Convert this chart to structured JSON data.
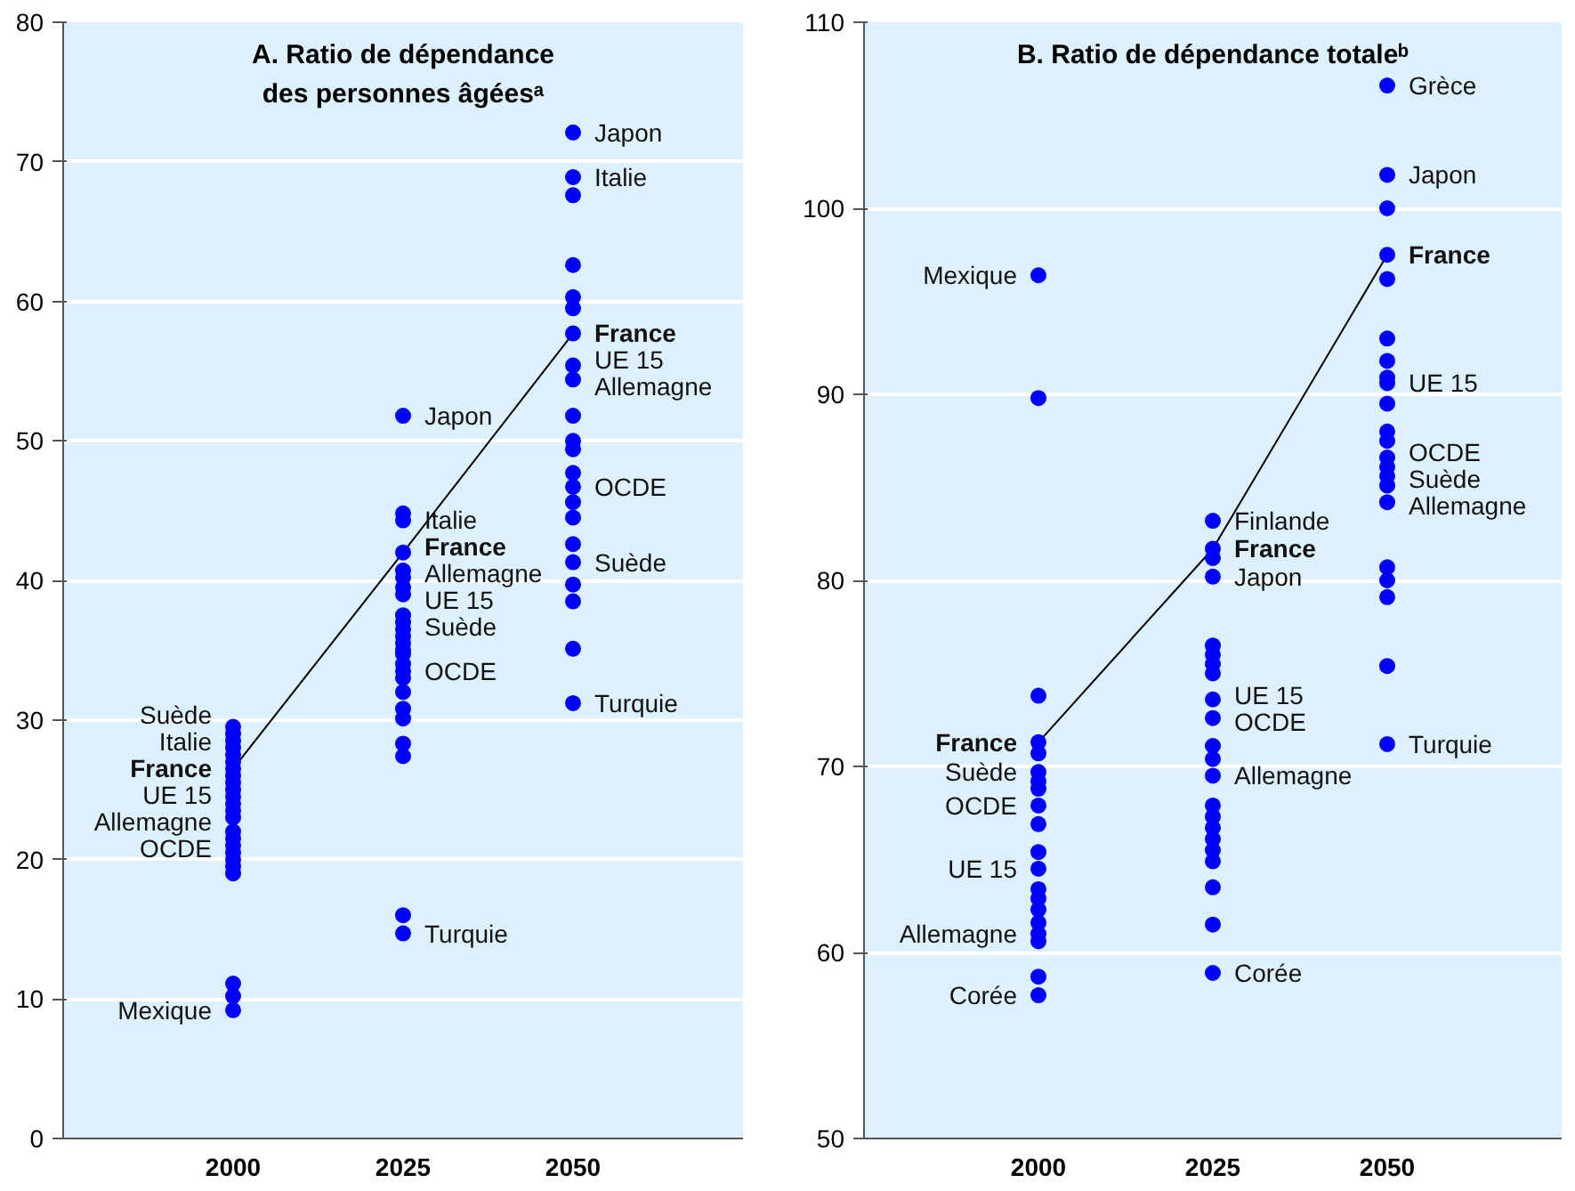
{
  "chart_data": [
    {
      "type": "scatter",
      "title": "A. Ratio de dépendance\ndes personnes âgéesᵃ",
      "xlim": [
        1975,
        2075
      ],
      "xticks": [
        2000,
        2025,
        2050
      ],
      "ylim": [
        0,
        80
      ],
      "yticks": [
        0,
        10,
        20,
        30,
        40,
        50,
        60,
        70,
        80
      ],
      "grid": "y",
      "marker": "circle",
      "series": [
        {
          "color": "#0000ff",
          "x": [
            2000,
            2000,
            2000,
            2000,
            2000,
            2000,
            2000,
            2000,
            2000,
            2000,
            2000,
            2000,
            2000,
            2000,
            2000,
            2000,
            2000,
            2000,
            2000,
            2000,
            2000,
            2000,
            2000,
            2000,
            2025,
            2025,
            2025,
            2025,
            2025,
            2025,
            2025,
            2025,
            2025,
            2025,
            2025,
            2025,
            2025,
            2025,
            2025,
            2025,
            2025,
            2025,
            2025,
            2025,
            2025,
            2025,
            2025,
            2025,
            2025,
            2050,
            2050,
            2050,
            2050,
            2050,
            2050,
            2050,
            2050,
            2050,
            2050,
            2050,
            2050,
            2050,
            2050,
            2050,
            2050,
            2050,
            2050,
            2050,
            2050,
            2050,
            2050
          ],
          "values": [
            29.5,
            29,
            28.5,
            28,
            27.5,
            27,
            26.5,
            26,
            25.5,
            25,
            24.5,
            24,
            23.5,
            23,
            22,
            21.5,
            21,
            20.5,
            20,
            19.5,
            19,
            11.1,
            10.2,
            9.2,
            51.8,
            44.8,
            44.3,
            42,
            40.7,
            40.2,
            39.5,
            39,
            37.5,
            37,
            36.5,
            36,
            35.5,
            35,
            34.7,
            34,
            33.5,
            33,
            32,
            30.8,
            30.1,
            28.3,
            27.4,
            16,
            14.7,
            72.1,
            68.9,
            67.6,
            62.6,
            60.3,
            59.5,
            57.7,
            55.4,
            54.4,
            51.8,
            50,
            49.4,
            47.7,
            46.7,
            45.6,
            44.5,
            42.6,
            41.3,
            39.7,
            38.5,
            35.1,
            31.2
          ]
        },
        {
          "type": "line",
          "name": "France",
          "color": "#000000",
          "marker": "none",
          "x": [
            2000,
            2025,
            2050
          ],
          "values": [
            26.5,
            42.0,
            57.7
          ]
        }
      ],
      "annotations": [
        {
          "text": "Suède",
          "x": 2000,
          "y": 29.5
        },
        {
          "text": "Italie",
          "x": 2000,
          "y": 28.5
        },
        {
          "text": "UE 15",
          "x": 2000,
          "y": 25
        },
        {
          "text": "Allemagne",
          "x": 2000,
          "y": 23
        },
        {
          "text": "OCDE",
          "x": 2000,
          "y": 21
        },
        {
          "text": "Mexique",
          "x": 2000,
          "y": 9.2
        },
        {
          "text": "Japon",
          "x": 2025,
          "y": 51.8
        },
        {
          "text": "Italie",
          "x": 2025,
          "y": 44.3
        },
        {
          "text": "Allemagne",
          "x": 2025,
          "y": 40.2
        },
        {
          "text": "UE 15",
          "x": 2025,
          "y": 39
        },
        {
          "text": "Suède",
          "x": 2025,
          "y": 37
        },
        {
          "text": "OCDE",
          "x": 2025,
          "y": 33.5
        },
        {
          "text": "Turquie",
          "x": 2025,
          "y": 14.7
        },
        {
          "text": "Japon",
          "x": 2050,
          "y": 72.1
        },
        {
          "text": "Italie",
          "x": 2050,
          "y": 68.9
        },
        {
          "text": "UE 15",
          "x": 2050,
          "y": 55.4
        },
        {
          "text": "Allemagne",
          "x": 2050,
          "y": 54.4
        },
        {
          "text": "OCDE",
          "x": 2050,
          "y": 46.7
        },
        {
          "text": "Suède",
          "x": 2050,
          "y": 41.3
        },
        {
          "text": "Turquie",
          "x": 2050,
          "y": 31.2
        }
      ]
    },
    {
      "type": "scatter",
      "title": "B. Ratio de dépendance totaleᵇ",
      "xlim": [
        1975,
        2075
      ],
      "xticks": [
        2000,
        2025,
        2050
      ],
      "ylim": [
        50,
        110
      ],
      "yticks": [
        50,
        60,
        70,
        80,
        90,
        100,
        110
      ],
      "grid": "y",
      "marker": "circle",
      "series": [
        {
          "color": "#0000ff",
          "x": [
            2000,
            2000,
            2000,
            2000,
            2000,
            2000,
            2000,
            2000,
            2000,
            2000,
            2000,
            2000,
            2000,
            2000,
            2000,
            2000,
            2000,
            2000,
            2000,
            2000,
            2025,
            2025,
            2025,
            2025,
            2025,
            2025,
            2025,
            2025,
            2025,
            2025,
            2025,
            2025,
            2025,
            2025,
            2025,
            2025,
            2025,
            2025,
            2025,
            2025,
            2025,
            2025,
            2050,
            2050,
            2050,
            2050,
            2050,
            2050,
            2050,
            2050,
            2050,
            2050,
            2050,
            2050,
            2050,
            2050,
            2050,
            2050,
            2050,
            2050,
            2050,
            2050,
            2050,
            2050
          ],
          "values": [
            96.4,
            89.8,
            73.8,
            71.3,
            70.7,
            69.7,
            69.2,
            68.8,
            67.9,
            66.9,
            65.4,
            64.5,
            63.4,
            62.9,
            62.3,
            61.6,
            61.0,
            60.6,
            58.7,
            57.7,
            83.2,
            81.7,
            81.2,
            80.2,
            76.5,
            76.0,
            75.5,
            75.0,
            73.6,
            72.6,
            71.1,
            70.4,
            69.5,
            67.9,
            67.3,
            66.7,
            66.1,
            65.5,
            64.9,
            63.5,
            61.5,
            58.9,
            106.6,
            101.8,
            100.0,
            97.5,
            96.2,
            93.0,
            91.8,
            90.9,
            90.6,
            89.5,
            88.0,
            87.5,
            86.6,
            86.1,
            85.6,
            85.1,
            84.2,
            80.7,
            80.0,
            79.1,
            75.4,
            71.2
          ]
        },
        {
          "type": "line",
          "name": "France",
          "color": "#000000",
          "marker": "none",
          "x": [
            2000,
            2025,
            2050
          ],
          "values": [
            71.3,
            81.7,
            97.5
          ]
        }
      ],
      "annotations": [
        {
          "text": "Mexique",
          "x": 2000,
          "y": 96.4
        },
        {
          "text": "Suède",
          "x": 2000,
          "y": 69.7
        },
        {
          "text": "OCDE",
          "x": 2000,
          "y": 67.9
        },
        {
          "text": "UE 15",
          "x": 2000,
          "y": 64.5
        },
        {
          "text": "Allemagne",
          "x": 2000,
          "y": 61.0
        },
        {
          "text": "Corée",
          "x": 2000,
          "y": 57.7
        },
        {
          "text": "Finlande",
          "x": 2025,
          "y": 83.2
        },
        {
          "text": "Japon",
          "x": 2025,
          "y": 80.2
        },
        {
          "text": "UE 15",
          "x": 2025,
          "y": 73.6
        },
        {
          "text": "OCDE",
          "x": 2025,
          "y": 72.6
        },
        {
          "text": "Allemagne",
          "x": 2025,
          "y": 69.5
        },
        {
          "text": "Corée",
          "x": 2025,
          "y": 58.9
        },
        {
          "text": "Grèce",
          "x": 2050,
          "y": 106.6
        },
        {
          "text": "Japon",
          "x": 2050,
          "y": 101.8
        },
        {
          "text": "UE 15",
          "x": 2050,
          "y": 90.6
        },
        {
          "text": "OCDE",
          "x": 2050,
          "y": 86.6
        },
        {
          "text": "Suède",
          "x": 2050,
          "y": 85.6
        },
        {
          "text": "Allemagne",
          "x": 2050,
          "y": 84.2
        },
        {
          "text": "Turquie",
          "x": 2050,
          "y": 71.2
        }
      ]
    }
  ]
}
